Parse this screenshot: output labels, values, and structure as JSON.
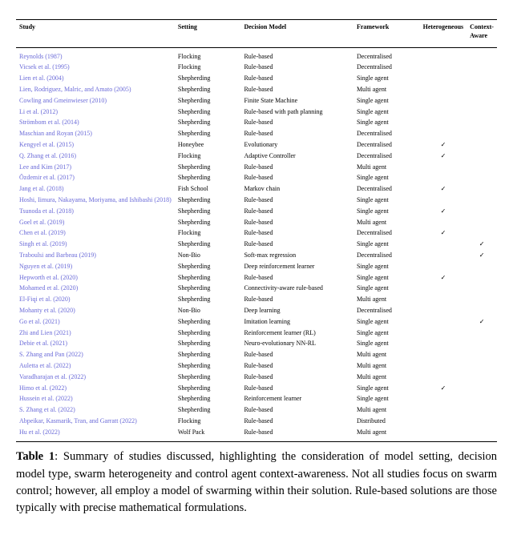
{
  "columns": [
    "Study",
    "Setting",
    "Decision Model",
    "Framework",
    "Heterogeneous",
    "Context-Aware"
  ],
  "header_labels": {
    "study": "Study",
    "setting": "Setting",
    "model": "Decision Model",
    "framework": "Framework",
    "hetero": "Heterogeneous",
    "context": "Context-Aware"
  },
  "check_glyph": "✓",
  "link_color": "#6a6ad8",
  "rows": [
    {
      "study": "Reynolds (1987)",
      "setting": "Flocking",
      "model": "Rule-based",
      "framework": "Decentralised",
      "het": false,
      "ctx": false
    },
    {
      "study": "Vicsek et al. (1995)",
      "setting": "Flocking",
      "model": "Rule-based",
      "framework": "Decentralised",
      "het": false,
      "ctx": false
    },
    {
      "study": "Lien et al. (2004)",
      "setting": "Shepherding",
      "model": "Rule-based",
      "framework": "Single agent",
      "het": false,
      "ctx": false
    },
    {
      "study": "Lien, Rodriguez, Malric, and Amato (2005)",
      "setting": "Shepherding",
      "model": "Rule-based",
      "framework": "Multi agent",
      "het": false,
      "ctx": false
    },
    {
      "study": "Cowling and Gmeinwieser (2010)",
      "setting": "Shepherding",
      "model": "Finite State Machine",
      "framework": "Single agent",
      "het": false,
      "ctx": false
    },
    {
      "study": "Li et al. (2012)",
      "setting": "Shepherding",
      "model": "Rule-based with path planning",
      "framework": "Single agent",
      "het": false,
      "ctx": false
    },
    {
      "study": "Strömbom et al. (2014)",
      "setting": "Shepherding",
      "model": "Rule-based",
      "framework": "Single agent",
      "het": false,
      "ctx": false
    },
    {
      "study": "Maschian and Royan (2015)",
      "setting": "Shepherding",
      "model": "Rule-based",
      "framework": "Decentralised",
      "het": false,
      "ctx": false
    },
    {
      "study": "Kengyel et al. (2015)",
      "setting": "Honeybee",
      "model": "Evolutionary",
      "framework": "Decentralised",
      "het": true,
      "ctx": false
    },
    {
      "study": "Q. Zhang et al. (2016)",
      "setting": "Flocking",
      "model": "Adaptive Controller",
      "framework": "Decentralised",
      "het": true,
      "ctx": false
    },
    {
      "study": "Lee and Kim (2017)",
      "setting": "Shepherding",
      "model": "Rule-based",
      "framework": "Multi agent",
      "het": false,
      "ctx": false
    },
    {
      "study": "Özdemir et al. (2017)",
      "setting": "Shepherding",
      "model": "Rule-based",
      "framework": "Single agent",
      "het": false,
      "ctx": false
    },
    {
      "study": "Jang et al. (2018)",
      "setting": "Fish School",
      "model": "Markov chain",
      "framework": "Decentralised",
      "het": true,
      "ctx": false
    },
    {
      "study": "Hoshi, Iimura, Nakayama, Moriyama, and Ishibashi (2018)",
      "setting": "Shepherding",
      "model": "Rule-based",
      "framework": "Single agent",
      "het": false,
      "ctx": false
    },
    {
      "study": "Tsunoda et al. (2018)",
      "setting": "Shepherding",
      "model": "Rule-based",
      "framework": "Single agent",
      "het": true,
      "ctx": false
    },
    {
      "study": "Goel et al. (2019)",
      "setting": "Shepherding",
      "model": "Rule-based",
      "framework": "Multi agent",
      "het": false,
      "ctx": false
    },
    {
      "study": "Chen et al. (2019)",
      "setting": "Flocking",
      "model": "Rule-based",
      "framework": "Decentralised",
      "het": true,
      "ctx": false
    },
    {
      "study": "Singh et al. (2019)",
      "setting": "Shepherding",
      "model": "Rule-based",
      "framework": "Single agent",
      "het": false,
      "ctx": true
    },
    {
      "study": "Traboulsi and Barbeau (2019)",
      "setting": "Non-Bio",
      "model": "Soft-max regression",
      "framework": "Decentralised",
      "het": false,
      "ctx": true
    },
    {
      "study": "Nguyen et al. (2019)",
      "setting": "Shepherding",
      "model": "Deep reinforcement learner",
      "framework": "Single agent",
      "het": false,
      "ctx": false
    },
    {
      "study": "Hepworth et al. (2020)",
      "setting": "Shepherding",
      "model": "Rule-based",
      "framework": "Single agent",
      "het": true,
      "ctx": false
    },
    {
      "study": "Mohamed et al. (2020)",
      "setting": "Shepherding",
      "model": "Connectivity-aware rule-based",
      "framework": "Single agent",
      "het": false,
      "ctx": false
    },
    {
      "study": "El-Fiqi et al. (2020)",
      "setting": "Shepherding",
      "model": "Rule-based",
      "framework": "Multi agent",
      "het": false,
      "ctx": false
    },
    {
      "study": "Mohanty et al. (2020)",
      "setting": "Non-Bio",
      "model": "Deep learning",
      "framework": "Decentralised",
      "het": false,
      "ctx": false
    },
    {
      "study": "Go et al. (2021)",
      "setting": "Shepherding",
      "model": "Imitation learning",
      "framework": "Single agent",
      "het": false,
      "ctx": true
    },
    {
      "study": "Zhi and Lien (2021)",
      "setting": "Shepherding",
      "model": "Reinforcement learner (RL)",
      "framework": "Single agent",
      "het": false,
      "ctx": false
    },
    {
      "study": "Debie et al. (2021)",
      "setting": "Shepherding",
      "model": "Neuro-evolutionary NN-RL",
      "framework": "Single agent",
      "het": false,
      "ctx": false
    },
    {
      "study": "S. Zhang and Pan (2022)",
      "setting": "Shepherding",
      "model": "Rule-based",
      "framework": "Multi agent",
      "het": false,
      "ctx": false
    },
    {
      "study": "Auletta et al. (2022)",
      "setting": "Shepherding",
      "model": "Rule-based",
      "framework": "Multi agent",
      "het": false,
      "ctx": false
    },
    {
      "study": "Varadharajan et al. (2022)",
      "setting": "Shepherding",
      "model": "Rule-based",
      "framework": "Multi agent",
      "het": false,
      "ctx": false
    },
    {
      "study": "Himo et al. (2022)",
      "setting": "Shepherding",
      "model": "Rule-based",
      "framework": "Single agent",
      "het": true,
      "ctx": false
    },
    {
      "study": "Hussein et al. (2022)",
      "setting": "Shepherding",
      "model": "Reinforcement learner",
      "framework": "Single agent",
      "het": false,
      "ctx": false
    },
    {
      "study": "S. Zhang et al. (2022)",
      "setting": "Shepherding",
      "model": "Rule-based",
      "framework": "Multi agent",
      "het": false,
      "ctx": false
    },
    {
      "study": "Abpeikar, Kasmarik, Tran, and Garratt (2022)",
      "setting": "Flocking",
      "model": "Rule-based",
      "framework": "Distributed",
      "het": false,
      "ctx": false
    },
    {
      "study": "Hu et al. (2022)",
      "setting": "Wolf Pack",
      "model": "Rule-based",
      "framework": "Multi agent",
      "het": false,
      "ctx": false
    }
  ],
  "caption": {
    "label": "Table 1",
    "text": ": Summary of studies discussed, highlighting the consideration of model setting, decision model type, swarm heterogeneity and control agent context-awareness. Not all studies focus on swarm control; however, all employ a model of swarming within their solution. Rule-based solutions are those typically with precise mathematical formulations."
  }
}
